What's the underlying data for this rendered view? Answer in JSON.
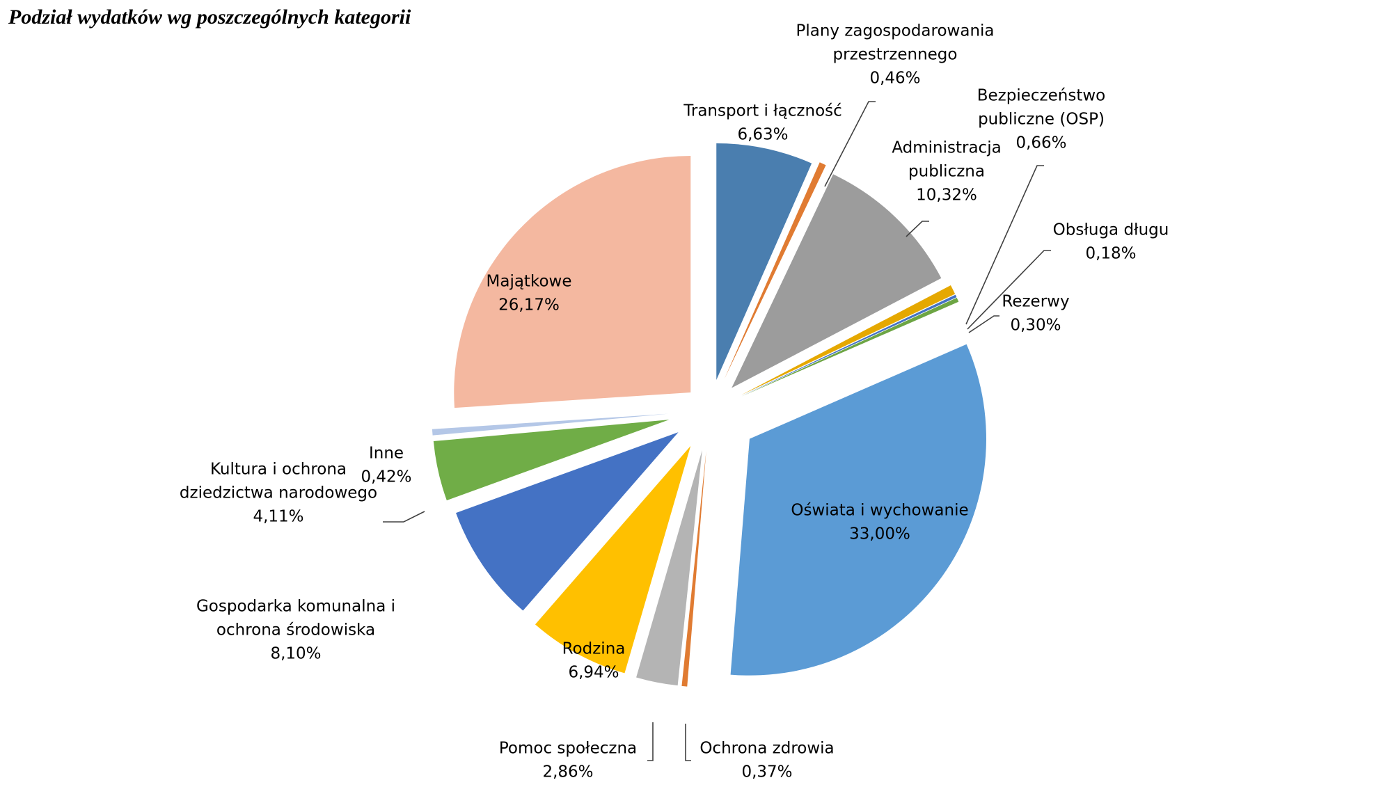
{
  "chart_data": {
    "type": "pie",
    "title": "Podział wydatków wg poszczególnych kategorii",
    "slices": [
      {
        "name": "Transport i łączność",
        "lines": [
          "Transport i łączność"
        ],
        "value": 6.63,
        "value_label": "6,63%",
        "color": "#4a7eaf"
      },
      {
        "name": "Plany zagospodarowania przestrzennego",
        "lines": [
          "Plany zagospodarowania",
          "przestrzennego"
        ],
        "value": 0.46,
        "value_label": "0,46%",
        "color": "#e07b32"
      },
      {
        "name": "Administracja publiczna",
        "lines": [
          "Administracja",
          "publiczna"
        ],
        "value": 10.32,
        "value_label": "10,32%",
        "color": "#9c9c9c"
      },
      {
        "name": "Bezpieczeństwo publiczne (OSP)",
        "lines": [
          "Bezpieczeństwo",
          "publiczne (OSP)"
        ],
        "value": 0.66,
        "value_label": "0,66%",
        "color": "#e5a800"
      },
      {
        "name": "Obsługa długu",
        "lines": [
          "Obsługa długu"
        ],
        "value": 0.18,
        "value_label": "0,18%",
        "color": "#4472c4"
      },
      {
        "name": "Rezerwy",
        "lines": [
          "Rezerwy"
        ],
        "value": 0.3,
        "value_label": "0,30%",
        "color": "#6da544"
      },
      {
        "name": "Oświata i wychowanie",
        "lines": [
          "Oświata i wychowanie"
        ],
        "value": 33.0,
        "value_label": "33,00%",
        "color": "#5b9bd5"
      },
      {
        "name": "Ochrona zdrowia",
        "lines": [
          "Ochrona zdrowia"
        ],
        "value": 0.37,
        "value_label": "0,37%",
        "color": "#e07b32"
      },
      {
        "name": "Pomoc społeczna",
        "lines": [
          "Pomoc społeczna"
        ],
        "value": 2.86,
        "value_label": "2,86%",
        "color": "#b4b4b4"
      },
      {
        "name": "Rodzina",
        "lines": [
          "Rodzina"
        ],
        "value": 6.94,
        "value_label": "6,94%",
        "color": "#ffc000"
      },
      {
        "name": "Gospodarka komunalna i ochrona środowiska",
        "lines": [
          "Gospodarka komunalna i",
          "ochrona środowiska"
        ],
        "value": 8.1,
        "value_label": "8,10%",
        "color": "#4472c4"
      },
      {
        "name": "Kultura i ochrona dziedzictwa narodowego",
        "lines": [
          "Kultura i ochrona",
          "dziedzictwa narodowego"
        ],
        "value": 4.11,
        "value_label": "4,11%",
        "color": "#70ad47"
      },
      {
        "name": "Inne",
        "lines": [
          "Inne"
        ],
        "value": 0.42,
        "value_label": "0,42%",
        "color": "#b4c7e7"
      },
      {
        "name": "Majątkowe",
        "lines": [
          "Majątkowe"
        ],
        "value": 26.17,
        "value_label": "26,17%",
        "color": "#f4b8a0"
      }
    ]
  }
}
